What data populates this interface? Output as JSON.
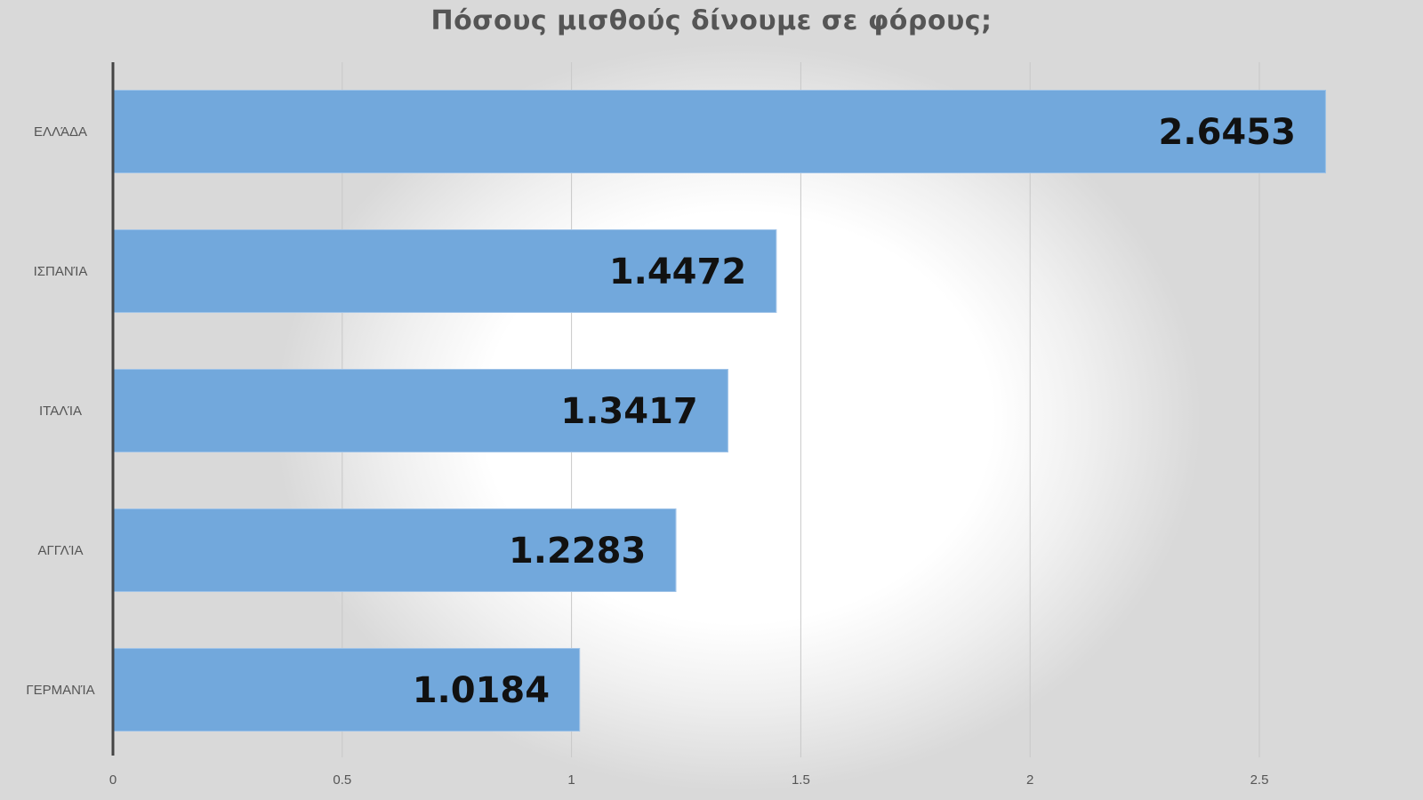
{
  "chart_data": {
    "type": "bar",
    "orientation": "horizontal",
    "title": "Πόσους μισθούς δίνουμε σε φόρους;",
    "xlabel": "",
    "ylabel": "",
    "categories": [
      "ΕΛΛΆΔΑ",
      "ΙΣΠΑΝΊΑ",
      "ΙΤΑΛΊΑ",
      "ΑΓΓΛΊΑ",
      "ΓΕΡΜΑΝΊΑ"
    ],
    "values": [
      2.6453,
      1.4472,
      1.3417,
      1.2283,
      1.0184
    ],
    "data_labels": [
      "2.6453",
      "1.4472",
      "1.3417",
      "1.2283",
      "1.0184"
    ],
    "x_ticks": [
      "0",
      "0.5",
      "1",
      "1.5",
      "2",
      "2.5"
    ],
    "x_tick_values": [
      0,
      0.5,
      1,
      1.5,
      2,
      2.5
    ],
    "xlim": [
      0,
      2.65
    ],
    "grid": true,
    "legend": "none",
    "colors": {
      "bar": "#72a8dc",
      "title": "#555555",
      "label": "#111111"
    }
  }
}
